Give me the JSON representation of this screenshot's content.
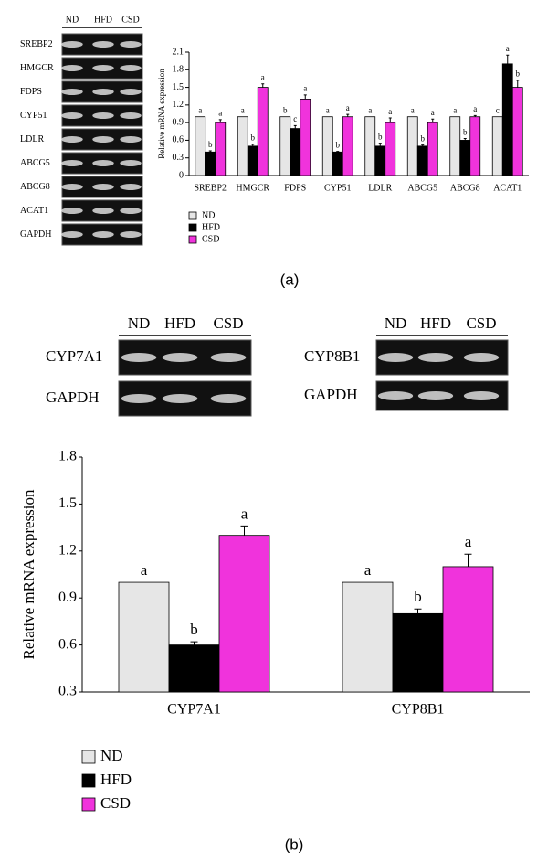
{
  "chart_data": [
    {
      "type": "bar",
      "y_label": "Relative mRNA expression",
      "categories": [
        "SREBP2",
        "HMGCR",
        "FDPS",
        "CYP51",
        "LDLR",
        "ABCG5",
        "ABCG8",
        "ACAT1"
      ],
      "series": [
        {
          "name": "ND",
          "color": "#e6e6e6",
          "values": [
            1.0,
            1.0,
            1.0,
            1.0,
            1.0,
            1.0,
            1.0,
            1.0
          ],
          "letters": [
            "a",
            "a",
            "b",
            "a",
            "a",
            "a",
            "a",
            "c"
          ]
        },
        {
          "name": "HFD",
          "color": "#000000",
          "values": [
            0.4,
            0.5,
            0.8,
            0.4,
            0.5,
            0.5,
            0.6,
            1.9
          ],
          "errors": [
            0.02,
            0.03,
            0.05,
            0.01,
            0.05,
            0.02,
            0.03,
            0.15
          ],
          "letters": [
            "b",
            "b",
            "c",
            "b",
            "b",
            "b",
            "b",
            "a"
          ]
        },
        {
          "name": "CSD",
          "color": "#f033dc",
          "values": [
            0.9,
            1.5,
            1.3,
            1.0,
            0.9,
            0.9,
            1.0,
            1.5
          ],
          "errors": [
            0.05,
            0.06,
            0.07,
            0.04,
            0.08,
            0.06,
            0.02,
            0.12
          ],
          "letters": [
            "a",
            "a",
            "a",
            "a",
            "a",
            "a",
            "a",
            "b"
          ]
        }
      ],
      "ylim": [
        0,
        2.1
      ],
      "yticks": [
        0,
        0.3,
        0.6,
        0.9,
        1.2,
        1.5,
        1.8,
        2.1
      ],
      "legend": "bottom-left"
    },
    {
      "type": "bar",
      "y_label": "Relative mRNA expression",
      "categories": [
        "CYP7A1",
        "CYP8B1"
      ],
      "series": [
        {
          "name": "ND",
          "color": "#e6e6e6",
          "values": [
            1.0,
            1.0
          ],
          "letters": [
            "a",
            "a"
          ]
        },
        {
          "name": "HFD",
          "color": "#000000",
          "values": [
            0.6,
            0.8
          ],
          "errors": [
            0.02,
            0.03
          ],
          "letters": [
            "b",
            "b"
          ]
        },
        {
          "name": "CSD",
          "color": "#f033dc",
          "values": [
            1.3,
            1.1
          ],
          "errors": [
            0.06,
            0.08
          ],
          "letters": [
            "a",
            "a"
          ]
        }
      ],
      "ylim": [
        0.3,
        1.8
      ],
      "yticks": [
        0.3,
        0.6,
        0.9,
        1.2,
        1.5,
        1.8
      ],
      "legend": "bottom-left"
    }
  ],
  "gels": [
    {
      "lanes": [
        "ND",
        "HFD",
        "CSD"
      ],
      "genes": [
        "SREBP2",
        "HMGCR",
        "FDPS",
        "CYP51",
        "LDLR",
        "ABCG5",
        "ABCG8",
        "ACAT1",
        "GAPDH"
      ]
    },
    {
      "lanes": [
        "ND",
        "HFD",
        "CSD"
      ],
      "genes": [
        "CYP7A1",
        "GAPDH"
      ]
    },
    {
      "lanes": [
        "ND",
        "HFD",
        "CSD"
      ],
      "genes": [
        "CYP8B1",
        "GAPDH"
      ]
    }
  ],
  "captions": [
    "(a)",
    "(b)"
  ]
}
